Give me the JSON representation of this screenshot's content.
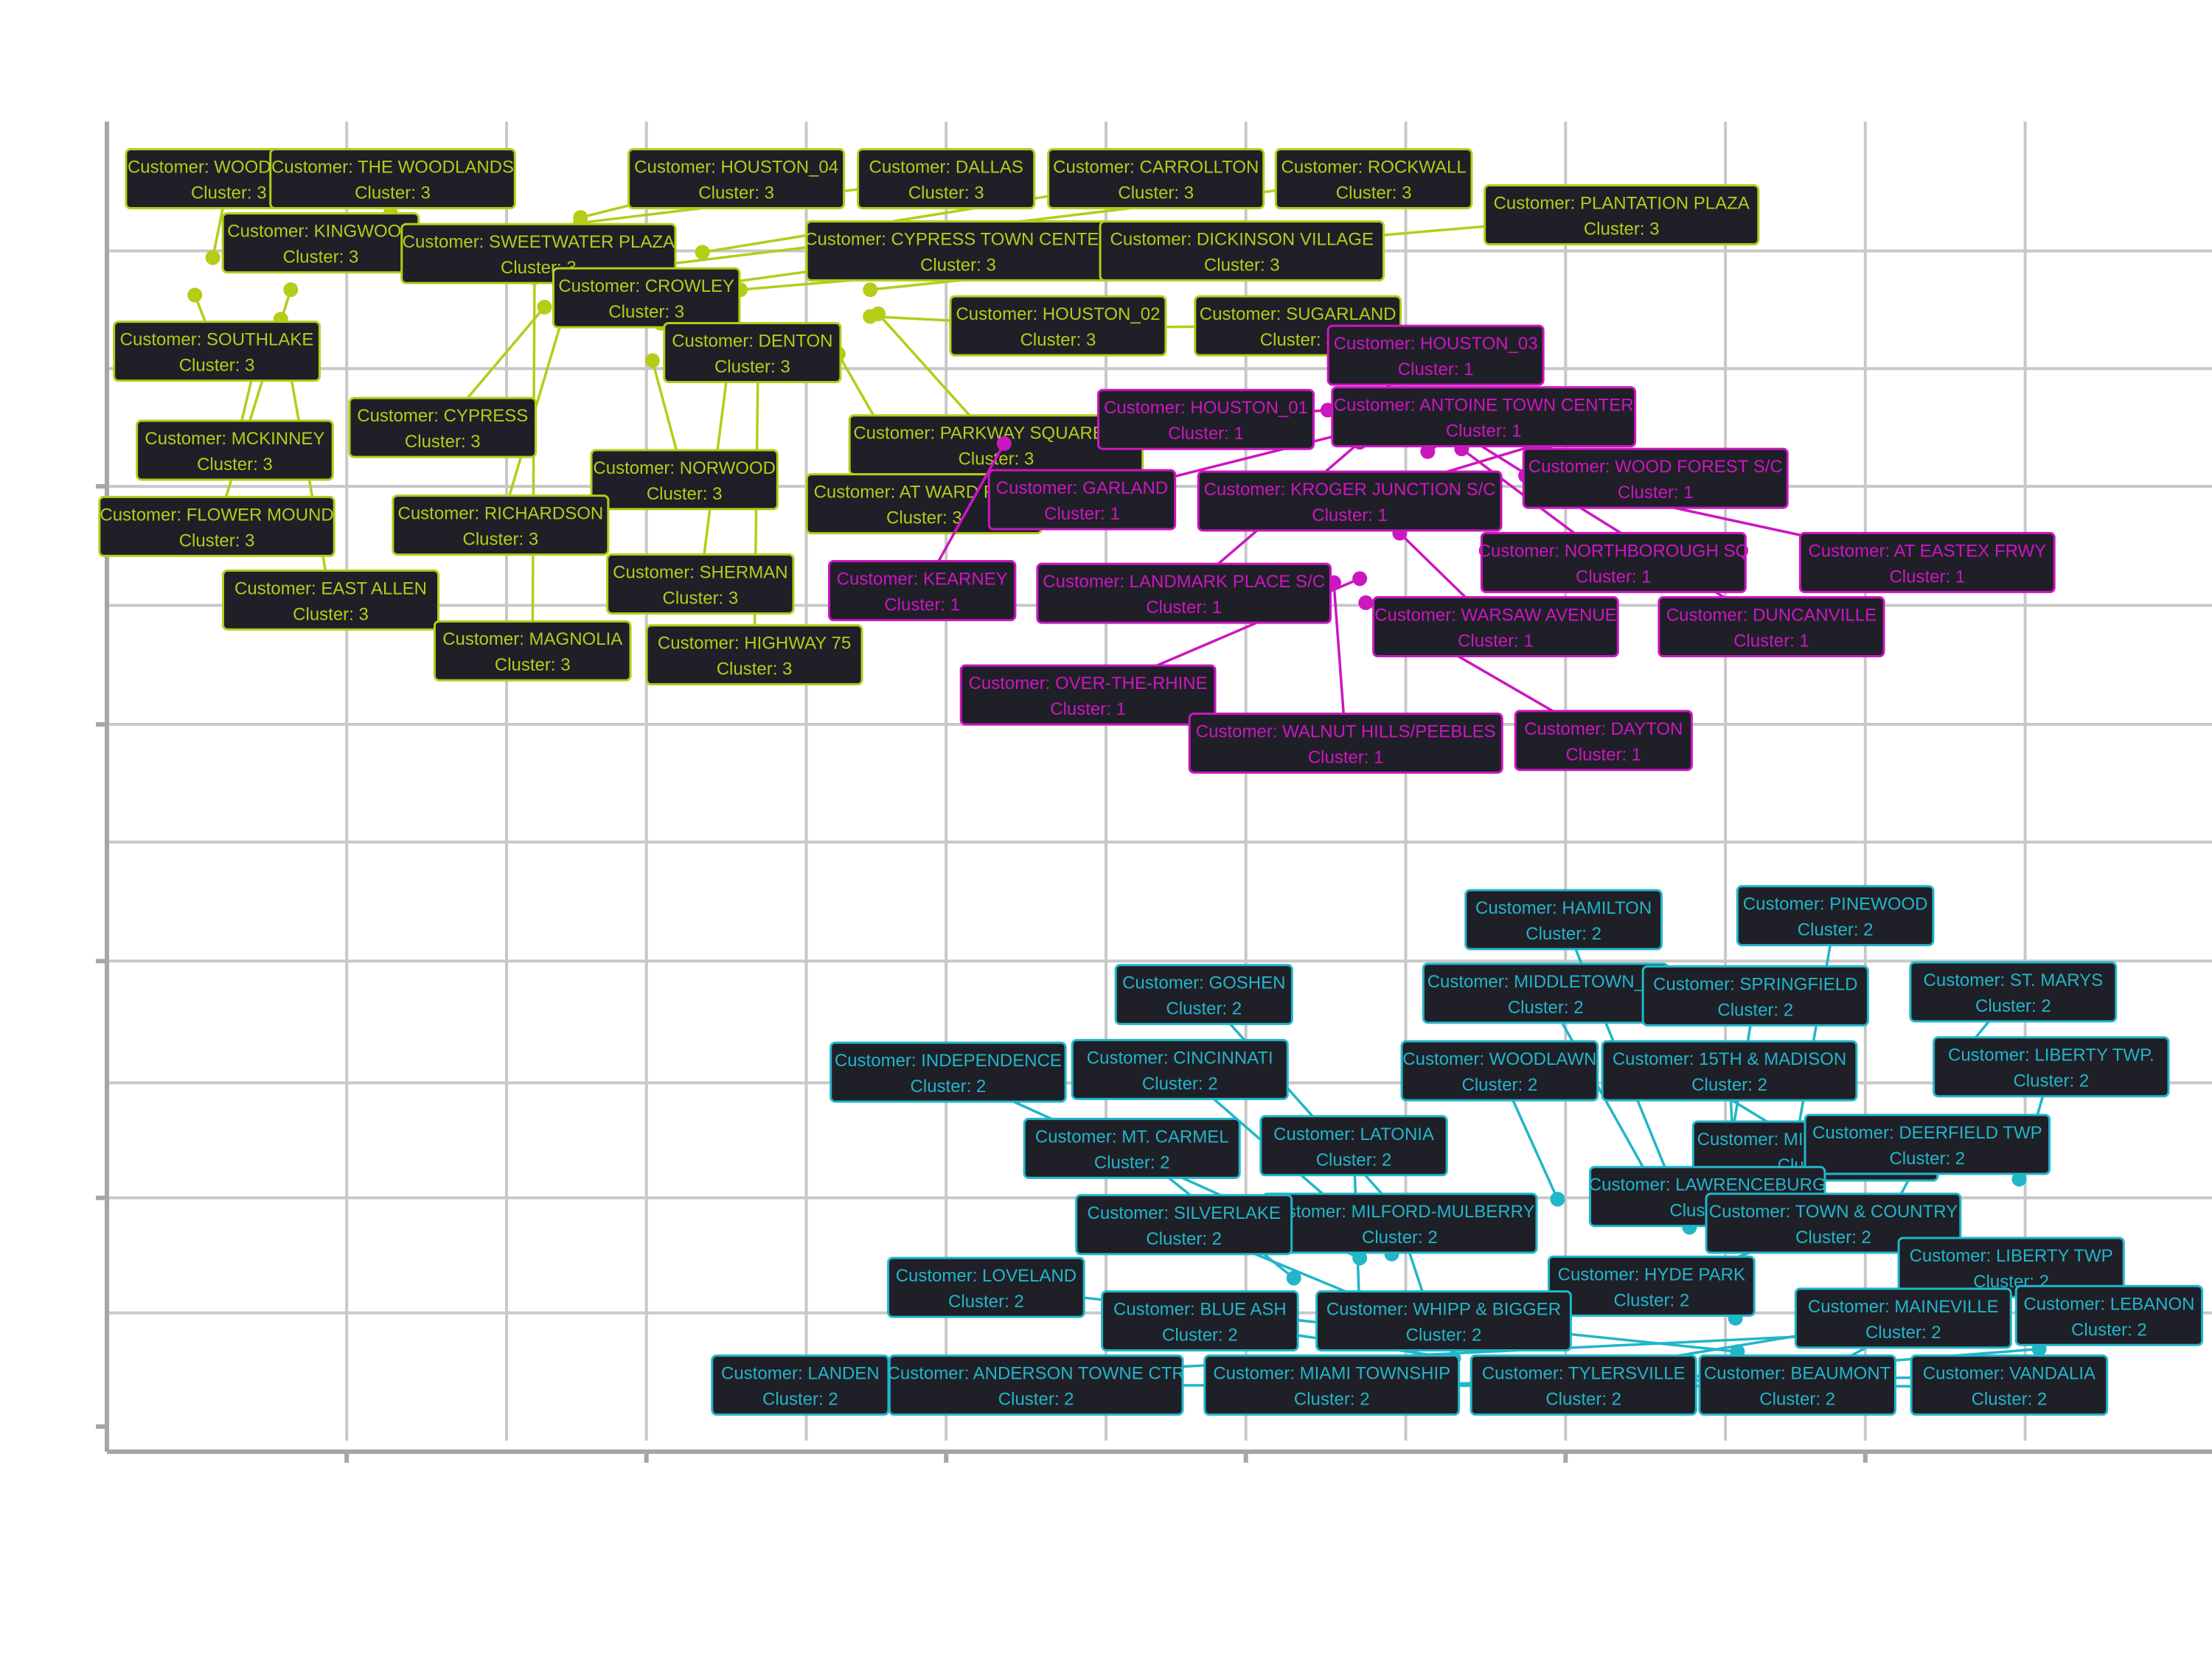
{
  "chart_data": {
    "type": "scatter",
    "title": "",
    "xlabel": "",
    "ylabel": "",
    "xlim": [
      0,
      100
    ],
    "ylim": [
      0,
      100
    ],
    "grid": true,
    "label_line_1": "Customer: ",
    "label_line_2": "Cluster: ",
    "series": [
      {
        "cluster": "3",
        "color": "#b5cc18",
        "points": [
          {
            "customer": "WOODLANDS",
            "x": 5.3,
            "y": 87.9,
            "lx": 6.1,
            "ly": 93.8
          },
          {
            "customer": "THE WOODLANDS",
            "x": 14.2,
            "y": 91.2,
            "lx": 14.3,
            "ly": 93.8
          },
          {
            "customer": "HOUSTON_04",
            "x": 23.7,
            "y": 90.9,
            "lx": 31.5,
            "ly": 93.8
          },
          {
            "customer": "DALLAS",
            "x": 23.7,
            "y": 90.5,
            "lx": 42.0,
            "ly": 93.8
          },
          {
            "customer": "CARROLLTON",
            "x": 29.8,
            "y": 88.3,
            "lx": 52.5,
            "ly": 93.8
          },
          {
            "customer": "ROCKWALL",
            "x": 28.0,
            "y": 87.4,
            "lx": 63.4,
            "ly": 93.8
          },
          {
            "customer": "PLANTATION PLAZA",
            "x": 31.7,
            "y": 85.5,
            "lx": 75.8,
            "ly": 91.1
          },
          {
            "customer": "KINGWOOD",
            "x": 8.7,
            "y": 89.2,
            "lx": 10.7,
            "ly": 89.0
          },
          {
            "customer": "SWEETWATER PLAZA",
            "x": 19.4,
            "y": 87.4,
            "lx": 21.6,
            "ly": 88.2
          },
          {
            "customer": "CYPRESS TOWN CENTER",
            "x": 27.5,
            "y": 85.3,
            "lx": 42.6,
            "ly": 88.4
          },
          {
            "customer": "DICKINSON VILLAGE",
            "x": 38.2,
            "y": 85.5,
            "lx": 56.8,
            "ly": 88.4
          },
          {
            "customer": "CROWLEY",
            "x": 24.3,
            "y": 84.6,
            "lx": 27.0,
            "ly": 84.9
          },
          {
            "customer": "HOUSTON_02",
            "x": 38.2,
            "y": 83.5,
            "lx": 47.6,
            "ly": 82.8
          },
          {
            "customer": "SUGARLAND",
            "x": 51.6,
            "y": 82.7,
            "lx": 59.6,
            "ly": 82.8
          },
          {
            "customer": "SOUTHLAKE",
            "x": 4.4,
            "y": 85.1,
            "lx": 5.5,
            "ly": 80.9
          },
          {
            "customer": "DENTON",
            "x": 27.7,
            "y": 83.0,
            "lx": 32.3,
            "ly": 80.8
          },
          {
            "customer": "CYPRESS",
            "x": 21.9,
            "y": 84.2,
            "lx": 16.8,
            "ly": 75.2
          },
          {
            "customer": "PARKWAY SQUARE S/C",
            "x": 38.6,
            "y": 83.7,
            "lx": 44.5,
            "ly": 73.9
          },
          {
            "customer": "MCKINNEY",
            "x": 7.7,
            "y": 81.7,
            "lx": 6.4,
            "ly": 73.5
          },
          {
            "customer": "NORWOOD",
            "x": 27.3,
            "y": 80.2,
            "lx": 28.9,
            "ly": 71.3
          },
          {
            "customer": "AT WARD ROAD",
            "x": 36.6,
            "y": 80.7,
            "lx": 40.9,
            "ly": 69.5
          },
          {
            "customer": "FLOWER MOUND",
            "x": 9.2,
            "y": 85.5,
            "lx": 5.5,
            "ly": 67.8
          },
          {
            "customer": "RICHARDSON",
            "x": 23.3,
            "y": 85.9,
            "lx": 19.7,
            "ly": 67.9
          },
          {
            "customer": "SHERMAN",
            "x": 31.2,
            "y": 81.0,
            "lx": 29.7,
            "ly": 63.5
          },
          {
            "customer": "EAST ALLEN",
            "x": 8.7,
            "y": 83.3,
            "lx": 11.2,
            "ly": 62.3
          },
          {
            "customer": "MAGNOLIA",
            "x": 21.4,
            "y": 86.4,
            "lx": 21.3,
            "ly": 58.5
          },
          {
            "customer": "HIGHWAY 75",
            "x": 32.6,
            "y": 81.6,
            "lx": 32.4,
            "ly": 58.2
          }
        ]
      },
      {
        "cluster": "1",
        "color": "#cc16c0",
        "points": [
          {
            "customer": "HOUSTON_03",
            "x": 61.9,
            "y": 76.1,
            "lx": 66.5,
            "ly": 80.6
          },
          {
            "customer": "ANTOINE TOWN CENTER",
            "x": 66.1,
            "y": 73.4,
            "lx": 68.9,
            "ly": 76.0
          },
          {
            "customer": "HOUSTON_01",
            "x": 61.1,
            "y": 76.5,
            "lx": 55.0,
            "ly": 75.8
          },
          {
            "customer": "WOOD FOREST S/C",
            "x": 72.0,
            "y": 73.5,
            "lx": 77.5,
            "ly": 71.4
          },
          {
            "customer": "GARLAND",
            "x": 62.9,
            "y": 75.1,
            "lx": 48.8,
            "ly": 69.8
          },
          {
            "customer": "KROGER JUNCTION S/C",
            "x": 71.3,
            "y": 73.8,
            "lx": 62.2,
            "ly": 69.7
          },
          {
            "customer": "NORTHBOROUGH SQ",
            "x": 67.8,
            "y": 73.6,
            "lx": 75.4,
            "ly": 65.1
          },
          {
            "customer": "AT EASTEX FRWY",
            "x": 71.0,
            "y": 71.6,
            "lx": 91.1,
            "ly": 65.1
          },
          {
            "customer": "KEARNEY",
            "x": 44.9,
            "y": 74.0,
            "lx": 40.8,
            "ly": 63.0
          },
          {
            "customer": "LANDMARK PLACE S/C",
            "x": 62.7,
            "y": 74.1,
            "lx": 53.9,
            "ly": 62.8
          },
          {
            "customer": "WARSAW AVENUE",
            "x": 64.7,
            "y": 67.3,
            "lx": 69.5,
            "ly": 60.3
          },
          {
            "customer": "DUNCANVILLE",
            "x": 67.5,
            "y": 75.0,
            "lx": 83.3,
            "ly": 60.3
          },
          {
            "customer": "OVER-THE-RHINE",
            "x": 62.7,
            "y": 63.9,
            "lx": 49.1,
            "ly": 55.2
          },
          {
            "customer": "WALNUT HILLS/PEEBLES",
            "x": 61.4,
            "y": 63.6,
            "lx": 62.0,
            "ly": 51.6
          },
          {
            "customer": "DAYTON",
            "x": 63.0,
            "y": 62.1,
            "lx": 74.9,
            "ly": 51.8
          }
        ]
      },
      {
        "cluster": "2",
        "color": "#21b6c8",
        "points": [
          {
            "customer": "HAMILTON",
            "x": 79.2,
            "y": 15.4,
            "lx": 72.9,
            "ly": 38.4
          },
          {
            "customer": "PINEWOOD",
            "x": 84.0,
            "y": 17.2,
            "lx": 86.5,
            "ly": 38.7
          },
          {
            "customer": "GOSHEN",
            "x": 65.6,
            "y": 14.9,
            "lx": 54.9,
            "ly": 32.8
          },
          {
            "customer": "MIDDLETOWN_01",
            "x": 77.7,
            "y": 17.7,
            "lx": 72.0,
            "ly": 32.9
          },
          {
            "customer": "SPRINGFIELD",
            "x": 80.5,
            "y": 14.9,
            "lx": 82.5,
            "ly": 32.7
          },
          {
            "customer": "ST. MARYS",
            "x": 92.7,
            "y": 28.1,
            "lx": 95.4,
            "ly": 33.0
          },
          {
            "customer": "INDEPENDENCE",
            "x": 62.7,
            "y": 13.1,
            "lx": 42.1,
            "ly": 27.0
          },
          {
            "customer": "CINCINNATI",
            "x": 64.3,
            "y": 13.4,
            "lx": 53.7,
            "ly": 27.2
          },
          {
            "customer": "WOODLAWN",
            "x": 72.6,
            "y": 17.5,
            "lx": 69.7,
            "ly": 27.1
          },
          {
            "customer": "15TH & MADISON",
            "x": 81.6,
            "y": 14.9,
            "lx": 81.2,
            "ly": 27.1
          },
          {
            "customer": "LIBERTY TWP.",
            "x": 95.7,
            "y": 19.0,
            "lx": 97.3,
            "ly": 27.4
          },
          {
            "customer": "MT. CARMEL",
            "x": 59.4,
            "y": 11.6,
            "lx": 51.3,
            "ly": 21.3
          },
          {
            "customer": "LATONIA",
            "x": 62.7,
            "y": 8.7,
            "lx": 62.4,
            "ly": 21.5
          },
          {
            "customer": "MIDDLETOWN_02",
            "x": 80.0,
            "y": 26.1,
            "lx": 85.5,
            "ly": 21.1
          },
          {
            "customer": "DEERFIELD TWP",
            "x": 89.3,
            "y": 16.5,
            "lx": 91.1,
            "ly": 21.6
          },
          {
            "customer": "LAWRENCEBURG",
            "x": 79.9,
            "y": 18.2,
            "lx": 80.1,
            "ly": 17.7
          },
          {
            "customer": "MILFORD-MULBERRY",
            "x": 66.3,
            "y": 8.5,
            "lx": 64.7,
            "ly": 15.7
          },
          {
            "customer": "SILVERLAKE",
            "x": 64.1,
            "y": 9.3,
            "lx": 53.9,
            "ly": 15.6
          },
          {
            "customer": "TOWN & COUNTRY",
            "x": 76.9,
            "y": 10.7,
            "lx": 86.4,
            "ly": 15.7
          },
          {
            "customer": "LIBERTY TWP",
            "x": 99.5,
            "y": 9.9,
            "lx": 95.3,
            "ly": 12.4
          },
          {
            "customer": "LOVELAND",
            "x": 64.4,
            "y": 7.7,
            "lx": 44.0,
            "ly": 10.9
          },
          {
            "customer": "HYDE PARK",
            "x": 81.5,
            "y": 8.6,
            "lx": 77.3,
            "ly": 11.0
          },
          {
            "customer": "BLUE ASH",
            "x": 67.4,
            "y": 5.6,
            "lx": 54.7,
            "ly": 8.4
          },
          {
            "customer": "WHIPP & BIGGER",
            "x": 81.6,
            "y": 6.1,
            "lx": 66.9,
            "ly": 8.4
          },
          {
            "customer": "MAINEVILLE",
            "x": 72.6,
            "y": 4.3,
            "lx": 89.9,
            "ly": 8.6
          },
          {
            "customer": "LEBANON",
            "x": 96.7,
            "y": 12.2,
            "lx": 100.2,
            "ly": 8.8
          },
          {
            "customer": "LANDEN",
            "x": 88.5,
            "y": 7.5,
            "lx": 34.7,
            "ly": 3.6
          },
          {
            "customer": "ANDERSON TOWNE CTR",
            "x": 97.1,
            "y": 3.5,
            "lx": 46.5,
            "ly": 3.6
          },
          {
            "customer": "MIAMI TOWNSHIP",
            "x": 98.1,
            "y": 4.3,
            "lx": 61.3,
            "ly": 3.6
          },
          {
            "customer": "TYLERSVILLE",
            "x": 96.7,
            "y": 6.3,
            "lx": 73.9,
            "ly": 3.6
          },
          {
            "customer": "BEAUMONT",
            "x": 93.3,
            "y": 10.7,
            "lx": 84.6,
            "ly": 3.6
          },
          {
            "customer": "VANDALIA",
            "x": 98.8,
            "y": 2.2,
            "lx": 95.2,
            "ly": 3.6
          }
        ]
      }
    ]
  }
}
